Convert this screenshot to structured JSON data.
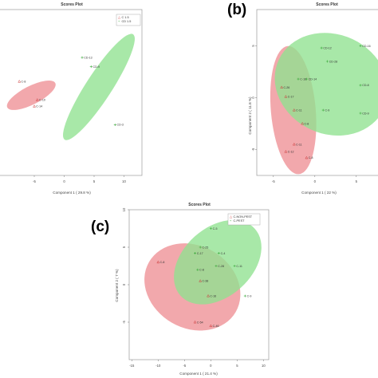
{
  "chart_data": [
    {
      "type": "scatter",
      "title": "Scores Plot",
      "xlabel": "Component 1 ( 29.8 %)",
      "ylabel": "",
      "xlim": [
        -11,
        13
      ],
      "ylim": [
        -9,
        9
      ],
      "xticks": [
        "-5",
        "0",
        "5",
        "10"
      ],
      "yticks": [],
      "grid": false,
      "legend_position": "top-right",
      "colors": {
        "C": "#ee8f95",
        "CD": "#8fe18f",
        "C_marker": "#cc3a3a",
        "CD_marker": "#3aa83a"
      },
      "series": [
        {
          "name": "C 1.5",
          "color": "#ee8f95",
          "points": [
            {
              "label": "C-8",
              "x": -7.5,
              "y": 1.2
            },
            {
              "label": "C-10",
              "x": -4.5,
              "y": -0.8
            },
            {
              "label": "C-14",
              "x": -5.0,
              "y": -1.5
            }
          ],
          "ellipse": {
            "cx": -5.5,
            "cy": -0.3,
            "rx": 4.5,
            "ry": 1.0,
            "angle_deg": -27
          }
        },
        {
          "name": "CD 1.5",
          "color": "#8fe18f",
          "points": [
            {
              "label": "CD-13",
              "x": 3.0,
              "y": 3.8
            },
            {
              "label": "CD-9",
              "x": 4.5,
              "y": 2.8
            },
            {
              "label": "CD-3",
              "x": 8.5,
              "y": -3.5
            }
          ],
          "ellipse": {
            "cx": 5.8,
            "cy": 0.6,
            "rx": 10.5,
            "ry": 1.4,
            "angle_deg": -57
          }
        }
      ]
    },
    {
      "type": "scatter",
      "panel_label": "(b)",
      "title": "Scores Plot",
      "xlabel": "Component 1 ( 22 %)",
      "ylabel": "Component 2 ( 11.8 %)",
      "xlim": [
        -7,
        8
      ],
      "ylim": [
        -7.5,
        8.5
      ],
      "xticks": [
        "-5",
        "0",
        "5"
      ],
      "yticks": [
        "5",
        "0",
        "-5"
      ],
      "grid": false,
      "colors": {
        "C": "#ee8f95",
        "CD": "#8fe18f",
        "C_marker": "#cc3a3a",
        "CD_marker": "#3aa83a"
      },
      "series": [
        {
          "name": "C",
          "color": "#ee8f95",
          "points": [
            {
              "label": "C-26",
              "x": -4.0,
              "y": 1.0
            },
            {
              "label": "C-17",
              "x": -3.5,
              "y": 0.1
            },
            {
              "label": "C-11",
              "x": -2.5,
              "y": -1.2
            },
            {
              "label": "C-8",
              "x": -1.5,
              "y": -2.5
            },
            {
              "label": "C-11",
              "x": -2.5,
              "y": -4.5
            },
            {
              "label": "C-12",
              "x": -3.5,
              "y": -5.2
            },
            {
              "label": "C-8",
              "x": -1.0,
              "y": -5.8
            }
          ],
          "ellipse": {
            "cx": -2.6,
            "cy": -1.2,
            "rx": 2.7,
            "ry": 6.2,
            "angle_deg": -5
          }
        },
        {
          "name": "CD",
          "color": "#8fe18f",
          "points": [
            {
              "label": "CD-12",
              "x": 0.8,
              "y": 4.8
            },
            {
              "label": "CD-16",
              "x": 5.5,
              "y": 5.0
            },
            {
              "label": "CD-28",
              "x": 1.5,
              "y": 3.5
            },
            {
              "label": "C-16",
              "x": -2.0,
              "y": 1.8
            },
            {
              "label": "CD-14",
              "x": -1.0,
              "y": 1.8
            },
            {
              "label": "CD-8",
              "x": 5.5,
              "y": 1.2
            },
            {
              "label": "C-9",
              "x": 1.0,
              "y": -1.2
            },
            {
              "label": "CD-9",
              "x": 5.5,
              "y": -1.5
            }
          ],
          "ellipse": {
            "cx": 2.0,
            "cy": 1.3,
            "rx": 7.0,
            "ry": 4.8,
            "angle_deg": 25
          }
        }
      ]
    },
    {
      "type": "scatter",
      "panel_label": "(c)",
      "title": "Scores Plot",
      "xlabel": "Component 1 ( 21.4 %)",
      "ylabel": "Component 2 ( 7 %)",
      "xlim": [
        -15.5,
        11
      ],
      "ylim": [
        -10,
        10
      ],
      "xticks": [
        "-15",
        "-10",
        "-5",
        "0",
        "5",
        "10"
      ],
      "yticks": [
        "10",
        "5",
        "0",
        "-5"
      ],
      "grid": false,
      "legend_position": "top-right",
      "colors": {
        "C-NON-PEST": "#ee8f95",
        "C-PEST": "#8fe18f",
        "NON_marker": "#cc3a3a",
        "PEST_marker": "#3aa83a"
      },
      "series": [
        {
          "name": "C-NON-PEST",
          "color": "#ee8f95",
          "points": [
            {
              "label": "C-8",
              "x": -10.0,
              "y": 3.0
            },
            {
              "label": "C-38",
              "x": -2.0,
              "y": 0.5
            },
            {
              "label": "C-16",
              "x": -0.5,
              "y": -1.5
            },
            {
              "label": "C-54",
              "x": -3.0,
              "y": -5.0
            },
            {
              "label": "C-46",
              "x": 0.0,
              "y": -5.5
            }
          ],
          "ellipse": {
            "cx": -3.5,
            "cy": -0.3,
            "rx": 9.5,
            "ry": 5.5,
            "angle_deg": 30
          }
        },
        {
          "name": "C-PEST",
          "color": "#8fe18f",
          "points": [
            {
              "label": "C-5",
              "x": 0.0,
              "y": 7.5
            },
            {
              "label": "C-25",
              "x": -2.0,
              "y": 5.0
            },
            {
              "label": "C-17",
              "x": -3.0,
              "y": 4.2
            },
            {
              "label": "C-4",
              "x": 1.5,
              "y": 4.2
            },
            {
              "label": "C-8",
              "x": -2.5,
              "y": 2.0
            },
            {
              "label": "C-28",
              "x": 1.0,
              "y": 2.5
            },
            {
              "label": "C-11",
              "x": 4.5,
              "y": 2.5
            },
            {
              "label": "C-9",
              "x": 6.5,
              "y": -1.5
            }
          ],
          "ellipse": {
            "cx": 1.3,
            "cy": 3.0,
            "rx": 9.5,
            "ry": 4.6,
            "angle_deg": -42
          }
        }
      ]
    }
  ]
}
